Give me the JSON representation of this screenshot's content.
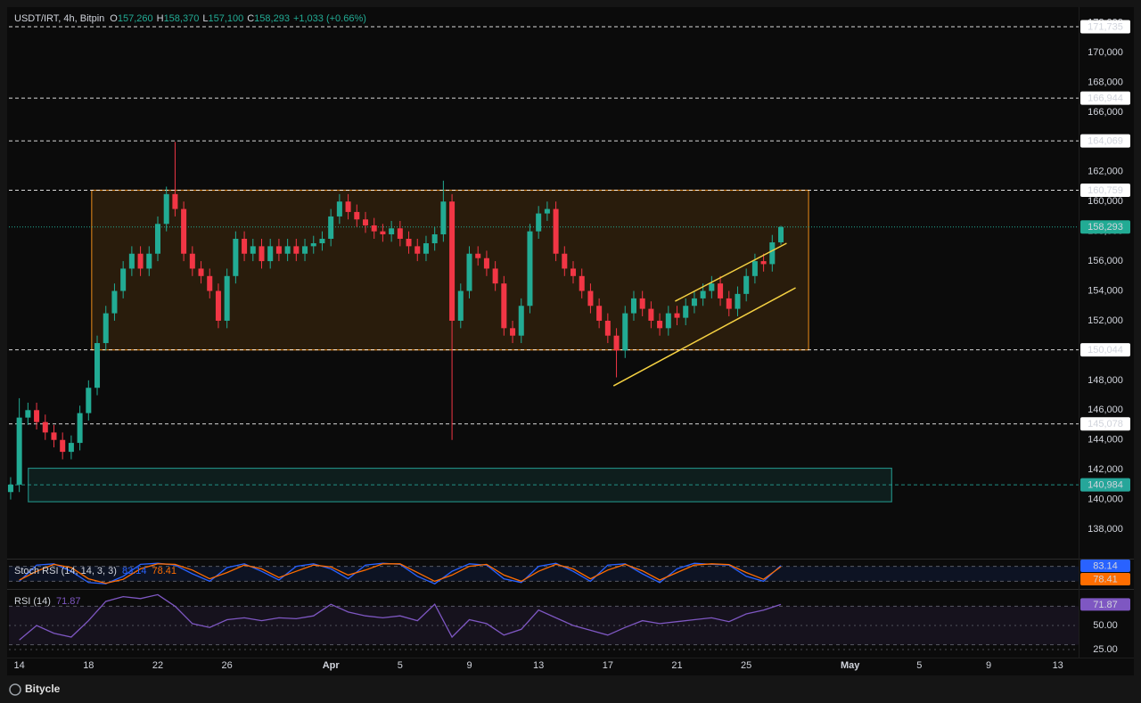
{
  "chart_data": [
    {
      "type": "candlestick",
      "title": "USDT/IRT, 4h, Bitpin",
      "ohlc": [
        {
          "key": "O",
          "value": "157,260"
        },
        {
          "key": "H",
          "value": "158,370"
        },
        {
          "key": "L",
          "value": "157,100"
        },
        {
          "key": "C",
          "value": "158,293"
        }
      ],
      "change": "+1,033 (+0.66%)",
      "up_color": "#22ab94",
      "down_color": "#f23645",
      "xlim": [
        13.4,
        75.2
      ],
      "xticks": [
        14,
        18,
        22,
        26,
        {
          "value": 32,
          "label": "Apr"
        },
        {
          "value": 36,
          "label": "5"
        },
        {
          "value": 40,
          "label": "9"
        },
        {
          "value": 44,
          "label": "13"
        },
        {
          "value": 48,
          "label": "17"
        },
        {
          "value": 52,
          "label": "21"
        },
        {
          "value": 56,
          "label": "25"
        },
        {
          "value": 62,
          "label": "May"
        },
        {
          "value": 66,
          "label": "5"
        },
        {
          "value": 70,
          "label": "9"
        },
        {
          "value": 74,
          "label": "13"
        }
      ],
      "ylim": [
        136150,
        172930
      ],
      "yticks": [
        {
          "value": 138000,
          "label": "138,000"
        },
        {
          "value": 140000,
          "label": "140,000"
        },
        {
          "value": 142000,
          "label": "142,000"
        },
        {
          "value": 144000,
          "label": "144,000"
        },
        {
          "value": 146000,
          "label": "146,000"
        },
        {
          "value": 148000,
          "label": "148,000"
        },
        {
          "value": 150000,
          "label": "150,000"
        },
        {
          "value": 152000,
          "label": "152,000"
        },
        {
          "value": 154000,
          "label": "154,000"
        },
        {
          "value": 156000,
          "label": "156,000"
        },
        {
          "value": 158000,
          "label": "158,000"
        },
        {
          "value": 160000,
          "label": "160,000"
        },
        {
          "value": 162000,
          "label": "162,000"
        },
        {
          "value": 164000,
          "label": "164,000"
        },
        {
          "value": 166000,
          "label": "166,000"
        },
        {
          "value": 168000,
          "label": "168,000"
        },
        {
          "value": 170000,
          "label": "170,000"
        },
        {
          "value": 172000,
          "label": "172,000"
        }
      ],
      "grid": false,
      "zones": [
        {
          "x": [
            18.18,
            59.6
          ],
          "y": [
            150044,
            160759
          ],
          "color": "#f7931a"
        },
        {
          "x": [
            14.52,
            64.4
          ],
          "y": [
            139850,
            142100
          ],
          "color": "#26a69a"
        }
      ],
      "trendlines": [
        {
          "x": [
            48.33,
            58.85
          ],
          "y": [
            147630,
            154210
          ],
          "color": "#f5d142"
        },
        {
          "x": [
            51.89,
            58.33
          ],
          "y": [
            153310,
            157200
          ],
          "color": "#f5d142"
        }
      ],
      "levels": [
        {
          "value": 171735,
          "label": "171,735",
          "color": "#ffffff"
        },
        {
          "value": 166944,
          "label": "166,944",
          "color": "#ffffff"
        },
        {
          "value": 164069,
          "label": "164,069",
          "color": "#ffffff"
        },
        {
          "value": 160759,
          "label": "160,759",
          "color": "#ffffff"
        },
        {
          "value": 150044,
          "label": "150,044",
          "color": "#ffffff"
        },
        {
          "value": 145078,
          "label": "145,078",
          "color": "#ffffff"
        },
        {
          "value": 140984,
          "label": "140,984",
          "color": "#26a69a"
        }
      ],
      "last_price": {
        "value": 158293,
        "label": "158,293",
        "color": "#22ab94"
      },
      "x": [
        13.5,
        14,
        14.5,
        15,
        15.5,
        16,
        16.5,
        17,
        17.5,
        18,
        18.5,
        19,
        19.5,
        20,
        20.5,
        21,
        21.5,
        22,
        22.5,
        23,
        23.5,
        24,
        24.5,
        25,
        25.5,
        26,
        26.5,
        27,
        27.5,
        28,
        28.5,
        29,
        29.5,
        30,
        30.5,
        31,
        31.5,
        32,
        32.5,
        33,
        33.5,
        34,
        34.5,
        35,
        35.5,
        36,
        36.5,
        37,
        37.5,
        38,
        38.5,
        39,
        39.5,
        40,
        40.5,
        41,
        41.5,
        42,
        42.5,
        43,
        43.5,
        44,
        44.5,
        45,
        45.5,
        46,
        46.5,
        47,
        47.5,
        48,
        48.5,
        49,
        49.5,
        50,
        50.5,
        51,
        51.5,
        52,
        52.5,
        53,
        53.5,
        54,
        54.5,
        55,
        55.5,
        56,
        56.5,
        57,
        57.5,
        58
      ],
      "open": [
        140500,
        141000,
        145500,
        146000,
        145200,
        144500,
        144000,
        143200,
        143800,
        145800,
        147500,
        150500,
        152500,
        154000,
        155500,
        156500,
        155500,
        156500,
        158500,
        160500,
        159500,
        156500,
        155500,
        155000,
        154000,
        152000,
        155000,
        157500,
        156500,
        157000,
        156000,
        157000,
        156500,
        157000,
        156500,
        157000,
        157200,
        157500,
        159000,
        160000,
        159300,
        158800,
        158400,
        158000,
        157800,
        158200,
        157500,
        157000,
        156500,
        157200,
        157800,
        160000,
        152000,
        154000,
        156500,
        156200,
        155500,
        154500,
        151500,
        151000,
        153000,
        158000,
        159200,
        159500,
        156500,
        155500,
        155000,
        154000,
        153000,
        152000,
        151000,
        150000,
        152500,
        153500,
        152800,
        152000,
        151500,
        152500,
        152200,
        153000,
        153500,
        154000,
        154500,
        153500,
        152800,
        153800,
        155000,
        156000,
        155800,
        157260
      ],
      "high": [
        141500,
        146800,
        146500,
        146500,
        145700,
        145000,
        144500,
        144300,
        146300,
        148000,
        151000,
        153000,
        154500,
        156000,
        157000,
        157000,
        157000,
        159000,
        161000,
        164000,
        160000,
        157000,
        156000,
        155500,
        154500,
        155500,
        158000,
        158000,
        157500,
        157500,
        157500,
        157500,
        157500,
        157500,
        157500,
        157700,
        158000,
        159500,
        160500,
        160500,
        159800,
        159300,
        158900,
        158500,
        158700,
        158700,
        158000,
        157500,
        157700,
        158300,
        161400,
        160500,
        154500,
        157000,
        157000,
        156700,
        156000,
        155000,
        152000,
        153500,
        158500,
        159700,
        160000,
        160000,
        157000,
        156000,
        155500,
        154500,
        153500,
        152500,
        151500,
        153000,
        154000,
        154000,
        153300,
        152500,
        153000,
        153000,
        153500,
        154000,
        154500,
        155000,
        155000,
        154000,
        154300,
        155500,
        156500,
        156500,
        157760,
        158370
      ],
      "low": [
        140000,
        140500,
        145000,
        144700,
        144000,
        143500,
        142700,
        142700,
        143300,
        145300,
        147000,
        150000,
        152000,
        153500,
        155000,
        155000,
        155000,
        156000,
        158000,
        159000,
        156000,
        155000,
        154500,
        153500,
        151500,
        151500,
        154500,
        156000,
        156000,
        155500,
        155500,
        156000,
        156000,
        156000,
        156000,
        156500,
        156700,
        157000,
        158500,
        158800,
        158300,
        157900,
        157500,
        157300,
        157300,
        157000,
        156500,
        156000,
        156000,
        156700,
        157300,
        144000,
        151500,
        153500,
        155700,
        155000,
        154000,
        151000,
        150500,
        150500,
        152500,
        157500,
        158700,
        156000,
        155000,
        154500,
        153500,
        152500,
        151500,
        150500,
        148200,
        149500,
        152000,
        152300,
        151500,
        151000,
        151000,
        151700,
        151700,
        152500,
        153000,
        153500,
        153000,
        152300,
        152300,
        153300,
        154500,
        155300,
        155300,
        157100
      ],
      "close": [
        141000,
        145500,
        146000,
        145200,
        144500,
        144000,
        143200,
        143800,
        145800,
        147500,
        150500,
        152500,
        154000,
        155500,
        156500,
        155500,
        156500,
        158500,
        160500,
        159500,
        156500,
        155500,
        155000,
        154000,
        152000,
        155000,
        157500,
        156500,
        157000,
        156000,
        157000,
        156500,
        157000,
        156500,
        157000,
        157200,
        157500,
        159000,
        160000,
        159300,
        158800,
        158400,
        158000,
        157800,
        158200,
        157500,
        157000,
        156500,
        157200,
        157800,
        160000,
        152000,
        154000,
        156500,
        156200,
        155500,
        154500,
        151500,
        151000,
        153000,
        158000,
        159200,
        159500,
        156500,
        155500,
        155000,
        154000,
        153000,
        152000,
        151000,
        150000,
        152500,
        153500,
        152800,
        152000,
        151500,
        152500,
        152200,
        153000,
        153500,
        154000,
        154500,
        153500,
        152800,
        153800,
        155000,
        156000,
        155800,
        157260,
        158293
      ]
    },
    {
      "type": "line",
      "title": "Stoch RSI (14, 14, 3, 3)",
      "ylim": [
        0,
        100
      ],
      "bands": [
        20,
        80
      ],
      "band_color": "#2962ff",
      "x": [
        14,
        15,
        16,
        17,
        18,
        19,
        20,
        21,
        22,
        23,
        24,
        25,
        26,
        27,
        28,
        29,
        30,
        31,
        32,
        33,
        34,
        35,
        36,
        37,
        38,
        39,
        40,
        41,
        42,
        43,
        44,
        45,
        46,
        47,
        48,
        49,
        50,
        51,
        52,
        53,
        54,
        55,
        56,
        57,
        58
      ],
      "series": [
        {
          "color": "#2962ff",
          "last_label": "83.14",
          "values": [
            20,
            85,
            90,
            60,
            15,
            10,
            40,
            88,
            92,
            85,
            50,
            20,
            75,
            90,
            60,
            25,
            80,
            90,
            70,
            30,
            85,
            92,
            88,
            40,
            10,
            60,
            90,
            85,
            30,
            15,
            80,
            92,
            60,
            20,
            85,
            90,
            50,
            15,
            70,
            92,
            88,
            85,
            40,
            20,
            83.14
          ]
        },
        {
          "color": "#ff6d00",
          "last_label": "78.41",
          "values": [
            25,
            60,
            88,
            75,
            30,
            12,
            28,
            70,
            90,
            88,
            65,
            30,
            55,
            85,
            70,
            35,
            60,
            85,
            78,
            45,
            65,
            90,
            90,
            55,
            20,
            45,
            80,
            88,
            45,
            20,
            60,
            88,
            70,
            30,
            65,
            88,
            62,
            25,
            55,
            85,
            90,
            87,
            55,
            28,
            78.41
          ]
        }
      ]
    },
    {
      "type": "line",
      "title": "RSI (14)",
      "ylim": [
        16.7,
        86.1
      ],
      "bands": [
        30,
        70
      ],
      "band_color": "#7e57c2",
      "yticks": [
        {
          "value": 50,
          "label": "50.00"
        },
        {
          "value": 25,
          "label": "25.00"
        }
      ],
      "x": [
        14,
        15,
        16,
        17,
        18,
        19,
        20,
        21,
        22,
        23,
        24,
        25,
        26,
        27,
        28,
        29,
        30,
        31,
        32,
        33,
        34,
        35,
        36,
        37,
        38,
        39,
        40,
        41,
        42,
        43,
        44,
        45,
        46,
        47,
        48,
        49,
        50,
        51,
        52,
        53,
        54,
        55,
        56,
        57,
        58
      ],
      "series": [
        {
          "color": "#7e57c2",
          "last_label": "71.87",
          "values": [
            35,
            50,
            42,
            38,
            55,
            75,
            80,
            78,
            82,
            70,
            52,
            48,
            56,
            58,
            55,
            58,
            57,
            60,
            72,
            64,
            60,
            58,
            60,
            55,
            72,
            38,
            56,
            52,
            40,
            46,
            66,
            58,
            50,
            45,
            40,
            48,
            55,
            52,
            54,
            56,
            58,
            54,
            62,
            66,
            71.87
          ]
        }
      ]
    }
  ],
  "footer": {
    "brand": "Bitycle"
  }
}
